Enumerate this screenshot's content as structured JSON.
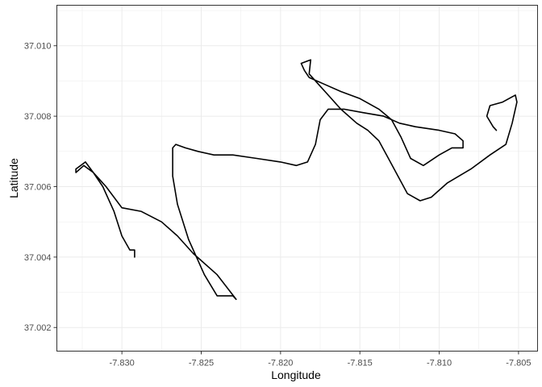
{
  "chart_data": {
    "type": "line",
    "title": "",
    "xlabel": "Longitude",
    "ylabel": "Latitude",
    "xlim": [
      -7.8341,
      -7.8038
    ],
    "ylim": [
      37.00133,
      37.01115
    ],
    "grid": true,
    "x_ticks": [
      -7.83,
      -7.825,
      -7.82,
      -7.815,
      -7.81,
      -7.805
    ],
    "x_tick_labels": [
      "-7.830",
      "-7.825",
      "-7.820",
      "-7.815",
      "-7.810",
      "-7.805"
    ],
    "y_ticks": [
      37.002,
      37.004,
      37.006,
      37.008,
      37.01
    ],
    "y_tick_labels": [
      "37.002",
      "37.004",
      "37.006",
      "37.008",
      "37.010"
    ],
    "series": [
      {
        "color": "#000000",
        "points": [
          [
            -7.8292,
            37.004
          ],
          [
            -7.8292,
            37.0042
          ],
          [
            -7.8295,
            37.0042
          ],
          [
            -7.83,
            37.0046
          ],
          [
            -7.8305,
            37.0053
          ],
          [
            -7.8312,
            37.006
          ],
          [
            -7.8318,
            37.0064
          ],
          [
            -7.8323,
            37.0067
          ],
          [
            -7.8326,
            37.0066
          ],
          [
            -7.8329,
            37.0065
          ],
          [
            -7.8329,
            37.0064
          ],
          [
            -7.8324,
            37.0066
          ],
          [
            -7.8318,
            37.0064
          ],
          [
            -7.831,
            37.006
          ],
          [
            -7.83,
            37.0054
          ],
          [
            -7.8288,
            37.0053
          ],
          [
            -7.8275,
            37.005
          ],
          [
            -7.8265,
            37.0046
          ],
          [
            -7.8255,
            37.0041
          ],
          [
            -7.824,
            37.0035
          ],
          [
            -7.8228,
            37.0028
          ],
          [
            -7.823,
            37.0029
          ],
          [
            -7.824,
            37.0029
          ],
          [
            -7.8248,
            37.0035
          ],
          [
            -7.8258,
            37.0045
          ],
          [
            -7.8265,
            37.0055
          ],
          [
            -7.8268,
            37.0063
          ],
          [
            -7.8268,
            37.0071
          ],
          [
            -7.8266,
            37.0072
          ],
          [
            -7.826,
            37.0071
          ],
          [
            -7.8252,
            37.007
          ],
          [
            -7.8242,
            37.0069
          ],
          [
            -7.823,
            37.0069
          ],
          [
            -7.8215,
            37.0068
          ],
          [
            -7.82,
            37.0067
          ],
          [
            -7.819,
            37.0066
          ],
          [
            -7.8183,
            37.0067
          ],
          [
            -7.8178,
            37.0072
          ],
          [
            -7.8175,
            37.0079
          ],
          [
            -7.817,
            37.0082
          ],
          [
            -7.816,
            37.0082
          ],
          [
            -7.8148,
            37.0081
          ],
          [
            -7.8135,
            37.008
          ],
          [
            -7.8125,
            37.0078
          ],
          [
            -7.8115,
            37.0077
          ],
          [
            -7.81,
            37.0076
          ],
          [
            -7.809,
            37.0075
          ],
          [
            -7.8085,
            37.0073
          ],
          [
            -7.8085,
            37.0071
          ],
          [
            -7.8092,
            37.0071
          ],
          [
            -7.81,
            37.0069
          ],
          [
            -7.811,
            37.0066
          ],
          [
            -7.8118,
            37.0068
          ],
          [
            -7.8124,
            37.0074
          ],
          [
            -7.813,
            37.0079
          ],
          [
            -7.8138,
            37.0082
          ],
          [
            -7.815,
            37.0085
          ],
          [
            -7.8162,
            37.0087
          ],
          [
            -7.8172,
            37.0089
          ],
          [
            -7.8182,
            37.0091
          ],
          [
            -7.8185,
            37.0093
          ],
          [
            -7.8187,
            37.0095
          ],
          [
            -7.8181,
            37.0096
          ],
          [
            -7.8182,
            37.0092
          ],
          [
            -7.8176,
            37.0089
          ],
          [
            -7.817,
            37.0086
          ],
          [
            -7.8162,
            37.0082
          ],
          [
            -7.8152,
            37.0078
          ],
          [
            -7.8145,
            37.0076
          ],
          [
            -7.8138,
            37.0073
          ],
          [
            -7.8132,
            37.0068
          ],
          [
            -7.8126,
            37.0063
          ],
          [
            -7.812,
            37.0058
          ],
          [
            -7.8112,
            37.0056
          ],
          [
            -7.8105,
            37.0057
          ],
          [
            -7.8095,
            37.0061
          ],
          [
            -7.808,
            37.0065
          ],
          [
            -7.8068,
            37.0069
          ],
          [
            -7.8058,
            37.0072
          ],
          [
            -7.8054,
            37.0078
          ],
          [
            -7.8051,
            37.0084
          ],
          [
            -7.8052,
            37.0086
          ],
          [
            -7.806,
            37.0084
          ],
          [
            -7.8068,
            37.0083
          ],
          [
            -7.807,
            37.008
          ],
          [
            -7.8066,
            37.0077
          ],
          [
            -7.8064,
            37.0076
          ]
        ]
      }
    ]
  }
}
